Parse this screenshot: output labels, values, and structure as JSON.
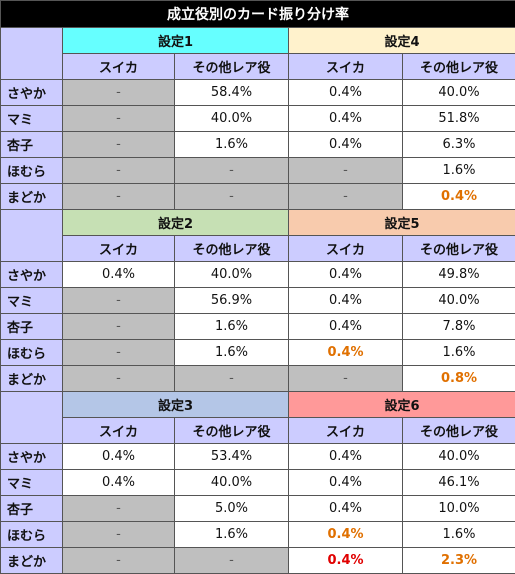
{
  "title": "成立役別のカード振り分け率",
  "col_headers": [
    "スイカ",
    "その他レア役"
  ],
  "colors": {
    "s1": "#66ffff",
    "s2": "#c6e0b4",
    "s3": "#b4c6e7",
    "s4": "#fff2cc",
    "s5": "#f8cbad",
    "s6": "#ff9999"
  },
  "blocks": [
    {
      "left_label": "設定1",
      "right_label": "設定4",
      "rows": [
        {
          "label": "さやか",
          "cells": [
            "-",
            "58.4%",
            "0.4%",
            "40.0%"
          ]
        },
        {
          "label": "マミ",
          "cells": [
            "-",
            "40.0%",
            "0.4%",
            "51.8%"
          ]
        },
        {
          "label": "杏子",
          "cells": [
            "-",
            "1.6%",
            "0.4%",
            "6.3%"
          ]
        },
        {
          "label": "ほむら",
          "cells": [
            "-",
            "-",
            "-",
            "1.6%"
          ]
        },
        {
          "label": "まどか",
          "cells": [
            "-",
            "-",
            "-",
            "0.4%"
          ]
        }
      ]
    },
    {
      "left_label": "設定2",
      "right_label": "設定5",
      "rows": [
        {
          "label": "さやか",
          "cells": [
            "0.4%",
            "40.0%",
            "0.4%",
            "49.8%"
          ]
        },
        {
          "label": "マミ",
          "cells": [
            "-",
            "56.9%",
            "0.4%",
            "40.0%"
          ]
        },
        {
          "label": "杏子",
          "cells": [
            "-",
            "1.6%",
            "0.4%",
            "7.8%"
          ]
        },
        {
          "label": "ほむら",
          "cells": [
            "-",
            "1.6%",
            "0.4%",
            "1.6%"
          ]
        },
        {
          "label": "まどか",
          "cells": [
            "-",
            "-",
            "-",
            "0.8%"
          ]
        }
      ]
    },
    {
      "left_label": "設定3",
      "right_label": "設定6",
      "rows": [
        {
          "label": "さやか",
          "cells": [
            "0.4%",
            "53.4%",
            "0.4%",
            "40.0%"
          ]
        },
        {
          "label": "マミ",
          "cells": [
            "0.4%",
            "40.0%",
            "0.4%",
            "46.1%"
          ]
        },
        {
          "label": "杏子",
          "cells": [
            "-",
            "5.0%",
            "0.4%",
            "10.0%"
          ]
        },
        {
          "label": "ほむら",
          "cells": [
            "-",
            "1.6%",
            "0.4%",
            "1.6%"
          ]
        },
        {
          "label": "まどか",
          "cells": [
            "-",
            "-",
            "0.4%",
            "2.3%"
          ]
        }
      ]
    }
  ]
}
